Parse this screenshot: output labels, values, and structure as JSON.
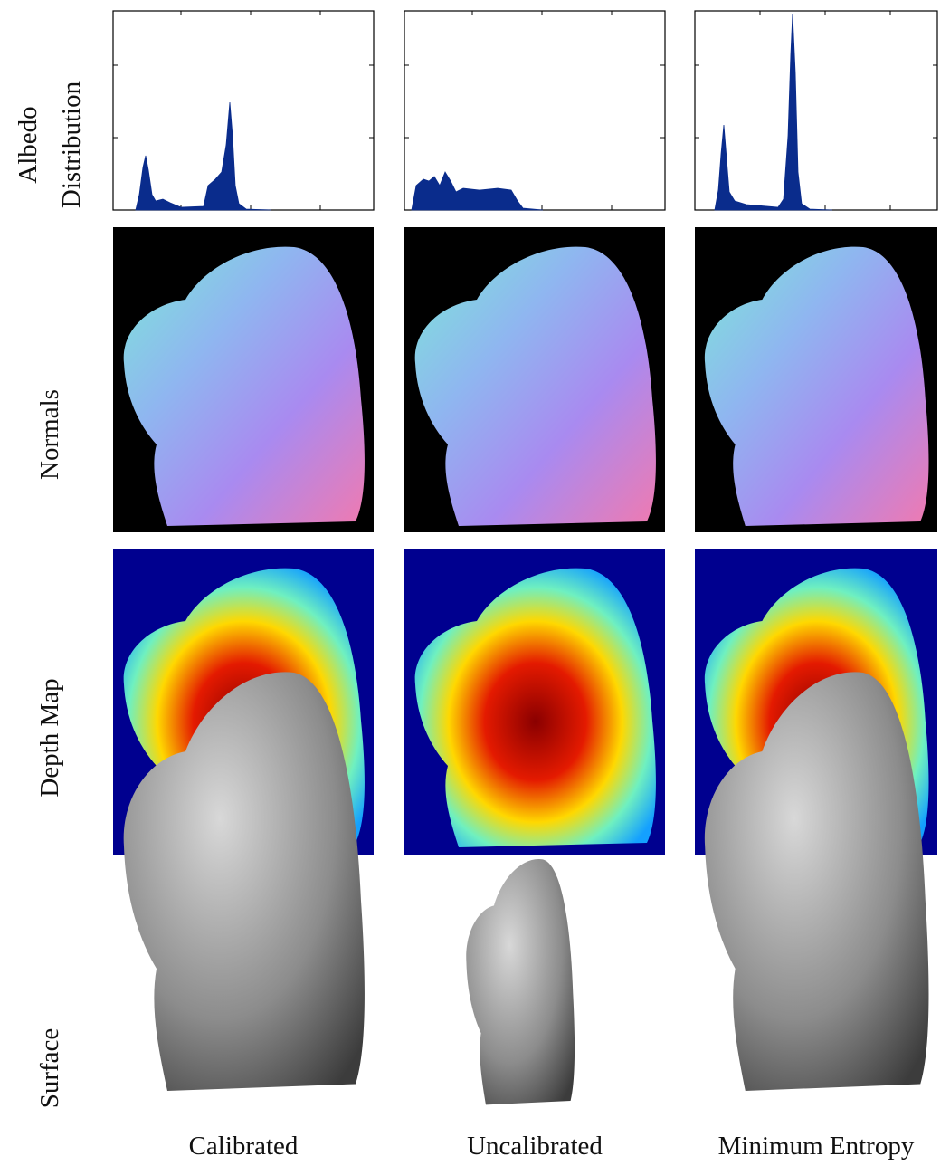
{
  "row_labels": {
    "albedo": [
      "Albedo",
      "Distribution"
    ],
    "normals": "Normals",
    "depth": "Depth Map",
    "surface": "Surface"
  },
  "column_labels": [
    "Calibrated",
    "Uncalibrated",
    "Minimum Entropy"
  ]
}
